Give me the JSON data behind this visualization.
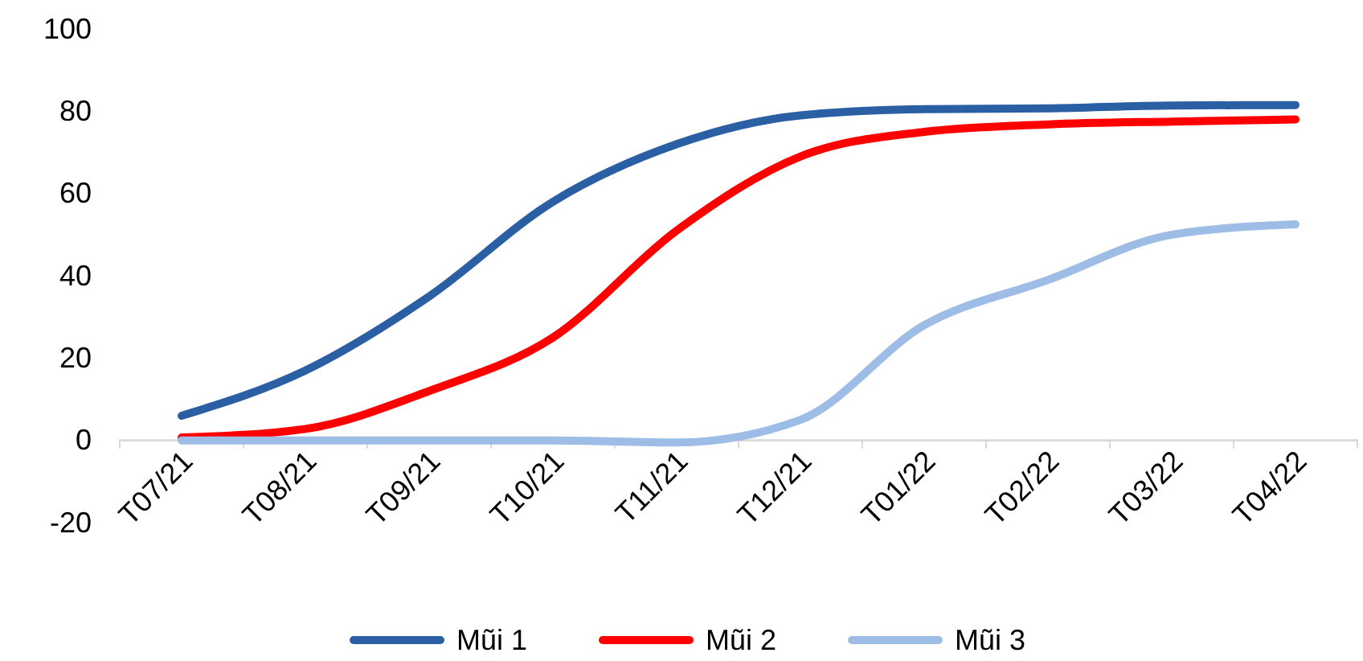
{
  "chart_data": {
    "type": "line",
    "categories": [
      "T07/21",
      "T08/21",
      "T09/21",
      "T10/21",
      "T11/21",
      "T12/21",
      "T01/22",
      "T02/22",
      "T03/22",
      "T04/22"
    ],
    "series": [
      {
        "name": "Mũi 1",
        "color": "#2b5fa4",
        "values": [
          6,
          17,
          35,
          58,
          72,
          79,
          80.5,
          80.7,
          81.4,
          81.5
        ]
      },
      {
        "name": "Mũi 2",
        "color": "#ff0000",
        "values": [
          0.7,
          2.8,
          12,
          25,
          51,
          69,
          75,
          76.8,
          77.5,
          78
        ]
      },
      {
        "name": "Mũi 3",
        "color": "#9dbde6",
        "values": [
          0,
          0,
          0,
          0,
          -0.5,
          5,
          28,
          39,
          50,
          52.5
        ]
      }
    ],
    "ylim": [
      -20,
      100
    ],
    "yticks": [
      -20,
      0,
      20,
      40,
      60,
      80,
      100
    ],
    "grid": false,
    "legend": "bottom",
    "line_style": "solid",
    "marker": "none"
  }
}
